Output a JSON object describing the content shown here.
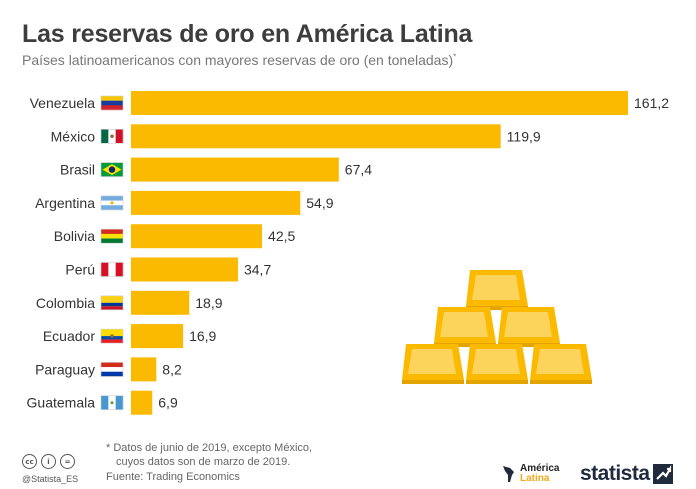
{
  "header": {
    "title": "Las reservas de oro en América Latina",
    "subtitle": "Países latinoamericanos con mayores reservas de oro (en toneladas)",
    "subtitle_mark": "*"
  },
  "chart_data": {
    "type": "bar",
    "orientation": "horizontal",
    "title": "Las reservas de oro en América Latina",
    "subtitle": "Países latinoamericanos con mayores reservas de oro (en toneladas)*",
    "categories": [
      "Venezuela",
      "México",
      "Brasil",
      "Argentina",
      "Bolivia",
      "Perú",
      "Colombia",
      "Ecuador",
      "Paraguay",
      "Guatemala"
    ],
    "values": [
      161.2,
      119.9,
      67.4,
      54.9,
      42.5,
      34.7,
      18.9,
      16.9,
      8.2,
      6.9
    ],
    "value_labels": [
      "161,2",
      "119,9",
      "67,4",
      "54,9",
      "42,5",
      "34,7",
      "18,9",
      "16,9",
      "8,2",
      "6,9"
    ],
    "xlabel": "",
    "ylabel": "",
    "xlim": [
      0,
      161.2
    ],
    "grid": false,
    "bar_color": "#fbb900",
    "label_color": "#333333"
  },
  "flags": [
    "venezuela-flag-icon",
    "mexico-flag-icon",
    "brazil-flag-icon",
    "argentina-flag-icon",
    "bolivia-flag-icon",
    "peru-flag-icon",
    "colombia-flag-icon",
    "ecuador-flag-icon",
    "paraguay-flag-icon",
    "guatemala-flag-icon"
  ],
  "illustration": "gold-bars-pyramid-icon",
  "footer": {
    "note_line1": "* Datos de junio de 2019, excepto México,",
    "note_line2": "cuyos datos son de marzo de 2019.",
    "source": "Fuente: Trading Economics",
    "handle": "@Statista_ES",
    "cc_icons": [
      "cc",
      "i",
      "="
    ],
    "partner_line1": "América",
    "partner_line2": "Latina",
    "brand": "statista"
  },
  "colors": {
    "gold": "#fbb900",
    "gold_light": "#fcd45c",
    "gold_dark": "#e3a300",
    "brand_navy": "#1f2a3c"
  }
}
